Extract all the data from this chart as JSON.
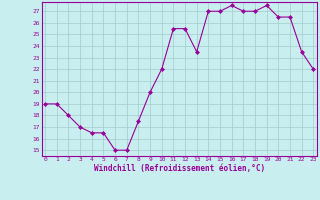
{
  "x": [
    0,
    1,
    2,
    3,
    4,
    5,
    6,
    7,
    8,
    9,
    10,
    11,
    12,
    13,
    14,
    15,
    16,
    17,
    18,
    19,
    20,
    21,
    22,
    23
  ],
  "y": [
    19,
    19,
    18,
    17,
    16.5,
    16.5,
    15,
    15,
    17.5,
    20,
    22,
    25.5,
    25.5,
    23.5,
    27,
    27,
    27.5,
    27,
    27,
    27.5,
    26.5,
    26.5,
    23.5,
    22
  ],
  "line_color": "#990099",
  "marker": "D",
  "marker_size": 2,
  "bg_color": "#c8eef0",
  "grid_color": "#a0cec8",
  "xlabel": "Windchill (Refroidissement éolien,°C)",
  "xlabel_color": "#990099",
  "tick_color": "#990099",
  "yticks": [
    15,
    16,
    17,
    18,
    19,
    20,
    21,
    22,
    23,
    24,
    25,
    26,
    27
  ],
  "xticks": [
    0,
    1,
    2,
    3,
    4,
    5,
    6,
    7,
    8,
    9,
    10,
    11,
    12,
    13,
    14,
    15,
    16,
    17,
    18,
    19,
    20,
    21,
    22,
    23
  ],
  "ylim_min": 14.5,
  "ylim_max": 27.8,
  "xlim_min": -0.3,
  "xlim_max": 23.3
}
